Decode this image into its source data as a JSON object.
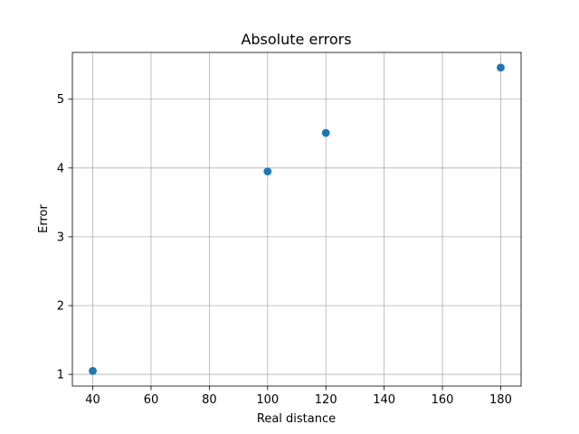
{
  "chart_data": {
    "type": "scatter",
    "title": "Absolute errors",
    "xlabel": "Real distance",
    "ylabel": "Error",
    "xlim": [
      33,
      187
    ],
    "ylim": [
      0.83,
      5.68
    ],
    "xticks": [
      40,
      60,
      80,
      100,
      120,
      140,
      160,
      180
    ],
    "yticks": [
      1,
      2,
      3,
      4,
      5
    ],
    "grid": true,
    "legend": false,
    "marker_color": "#1f77b4",
    "x": [
      40,
      100,
      120,
      180
    ],
    "y": [
      1.05,
      3.95,
      4.51,
      5.46
    ]
  }
}
